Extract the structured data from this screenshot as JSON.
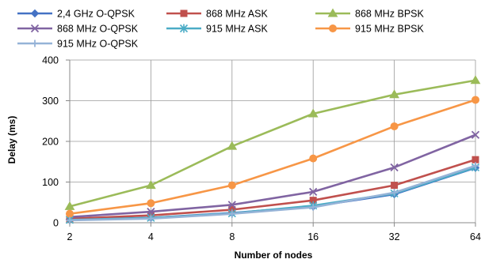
{
  "chart_data": {
    "type": "line",
    "xlabel": "Number of nodes",
    "ylabel": "Delay (ms)",
    "categories": [
      "2",
      "4",
      "8",
      "16",
      "32",
      "64"
    ],
    "ylim": [
      0,
      400
    ],
    "yticks": [
      0,
      100,
      200,
      300,
      400
    ],
    "grid": true,
    "legend_position": "top",
    "series": [
      {
        "name": "2,4 GHz O-QPSK",
        "color": "#4472C4",
        "marker": "diamond",
        "values": [
          8,
          12,
          24,
          40,
          70,
          135
        ]
      },
      {
        "name": "868 MHz ASK",
        "color": "#C0504D",
        "marker": "square",
        "values": [
          10,
          18,
          32,
          55,
          92,
          155
        ]
      },
      {
        "name": "868 MHz BPSK",
        "color": "#9BBB59",
        "marker": "triangle",
        "values": [
          40,
          92,
          188,
          268,
          315,
          350
        ]
      },
      {
        "name": "868 MHz O-QPSK",
        "color": "#8064A2",
        "marker": "x",
        "values": [
          14,
          27,
          44,
          76,
          136,
          216
        ]
      },
      {
        "name": "915 MHz ASK",
        "color": "#4BACC6",
        "marker": "star",
        "values": [
          7,
          12,
          23,
          42,
          72,
          136
        ]
      },
      {
        "name": "915 MHz BPSK",
        "color": "#F79646",
        "marker": "circle",
        "values": [
          22,
          48,
          92,
          158,
          237,
          302
        ]
      },
      {
        "name": "915 MHz O-QPSK",
        "color": "#95B3D7",
        "marker": "plus",
        "values": [
          6,
          10,
          22,
          38,
          74,
          140
        ]
      }
    ]
  }
}
